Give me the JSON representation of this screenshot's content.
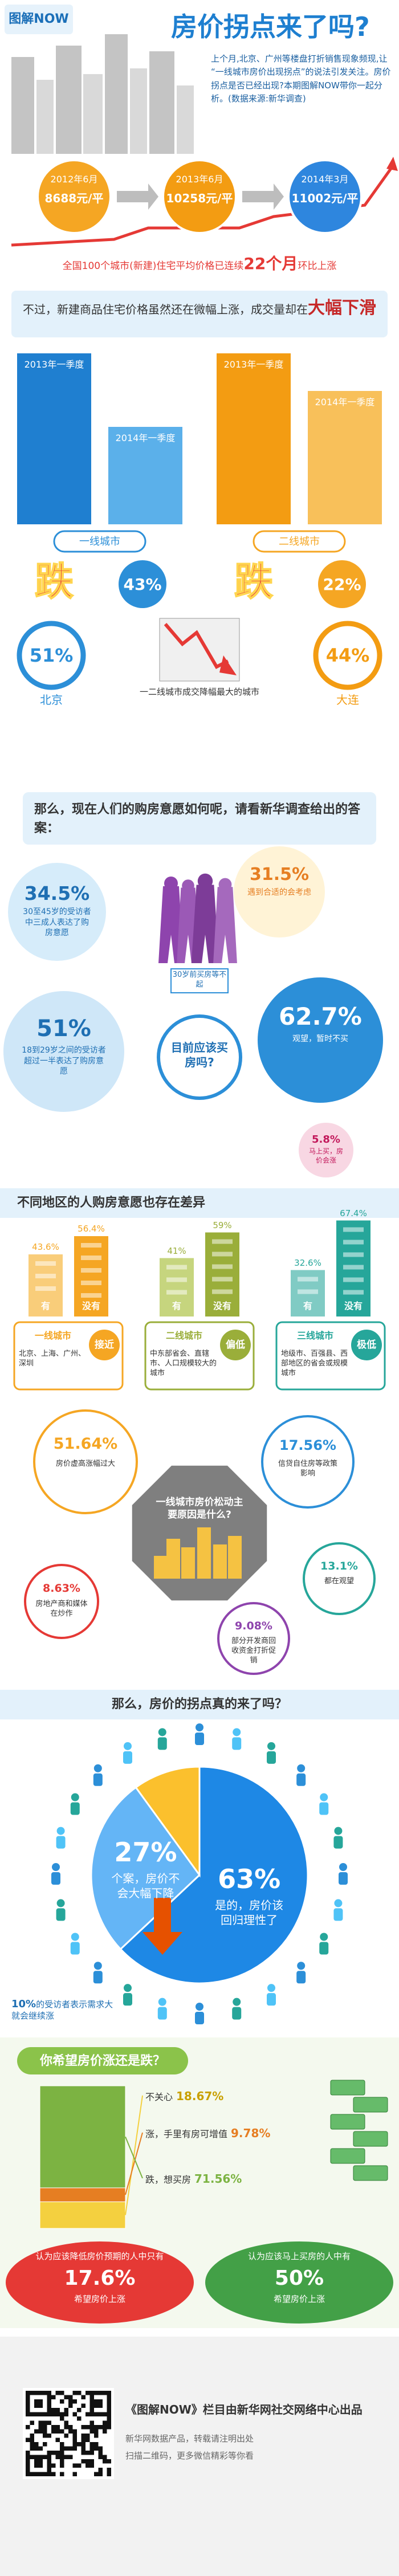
{
  "header": {
    "logo": "图解NOW",
    "title": "房价拐点来了吗?",
    "intro": "上个月,北京、广州等楼盘打折销售现象频现,让“一线城市房价出现拐点”的说法引发关注。房价拐点是否已经出现?本期图解NOW带你一起分析。(数据来源:新华调查)"
  },
  "timeline": {
    "items": [
      {
        "date": "2012年6月",
        "price": "8688元/平"
      },
      {
        "date": "2013年6月",
        "price": "10258元/平"
      },
      {
        "date": "2014年3月",
        "price": "11002元/平"
      }
    ],
    "note_before": "全国100个城市(新建)住宅平均价格已连续",
    "note_number": "22个月",
    "note_after": "环比上涨"
  },
  "volume": {
    "lead_before": "不过，新建商品住宅价格虽然还在微幅上涨，成交量却在",
    "lead_emph": "大幅下滑",
    "drop_word": "跌",
    "groups": [
      {
        "name": "一线城市",
        "bars": [
          "2013年一季度",
          "2014年一季度"
        ],
        "drop": {
          "value": 43,
          "label": "43%"
        }
      },
      {
        "name": "二线城市",
        "bars": [
          "2013年一季度",
          "2014年一季度"
        ],
        "drop": {
          "value": 22,
          "label": "22%"
        }
      }
    ]
  },
  "cities": {
    "left": {
      "pct": "51%",
      "city": "北京"
    },
    "center": "一二线城市成交降幅最大的城市",
    "right": {
      "pct": "44%",
      "city": "大连"
    }
  },
  "survey": {
    "question": "那么，现在人们的购房意愿如何呢，请看新华调查给出的答案：",
    "center": "目前应该买房吗?",
    "figure_caption": "30岁前买房等不起",
    "bubbles": [
      {
        "pct": "34.5%",
        "text": "30至45岁的受访者中三成人表达了购房意愿"
      },
      {
        "pct": "31.5%",
        "text": "遇到合适的会考虑"
      },
      {
        "pct": "51%",
        "text": "18到29岁之间的受访者超过一半表达了购房意愿"
      },
      {
        "pct": "62.7%",
        "text": "观望，暂时不买"
      },
      {
        "pct": "5.8%",
        "text": "马上买，房价会涨"
      }
    ]
  },
  "regions": {
    "title": "不同地区的人购房意愿也存在差异",
    "yes_label": "有",
    "no_label": "没有",
    "groups": [
      {
        "name": "一线城市",
        "yes": {
          "value": 43.6,
          "label": "43.6%"
        },
        "no": {
          "value": 56.4,
          "label": "56.4%"
        },
        "level": "接近",
        "cities": "北京、上海、广州、深圳"
      },
      {
        "name": "二线城市",
        "yes": {
          "value": 41,
          "label": "41%"
        },
        "no": {
          "value": 59,
          "label": "59%"
        },
        "level": "偏低",
        "cities": "中东部省会、直辖市、人口规模较大的城市"
      },
      {
        "name": "三线城市",
        "yes": {
          "value": 32.6,
          "label": "32.6%"
        },
        "no": {
          "value": 67.4,
          "label": "67.4%"
        },
        "level": "极低",
        "cities": "地级市、百强县、西部地区的省会或规模城市"
      }
    ]
  },
  "reasons": {
    "center": "一线城市房价松动主要原因是什么?",
    "items": [
      {
        "pct": "51.64%",
        "text": "房价虚高涨幅过大"
      },
      {
        "pct": "17.56%",
        "text": "信贷自住房等政策影响"
      },
      {
        "pct": "13.1%",
        "text": "都在观望"
      },
      {
        "pct": "8.63%",
        "text": "房地产商和媒体在炒作"
      },
      {
        "pct": "9.08%",
        "text": "部分开发商回收资金打折促销"
      }
    ]
  },
  "turning": {
    "question": "那么，房价的拐点真的来了吗？",
    "slices": [
      {
        "value": 63,
        "label": "63%",
        "text": "是的，房价该回归理性了"
      },
      {
        "value": 27,
        "label": "27%",
        "text": "个案，房价不会大幅下降"
      },
      {
        "value": 10,
        "label": "10%",
        "text": "的受访者表示需求大就会继续涨"
      }
    ]
  },
  "hope": {
    "title": "你希望房价涨还是跌？",
    "segments": [
      {
        "text": "不关心",
        "value": 18.67,
        "label": "18.67%"
      },
      {
        "text": "涨，手里有房可增值",
        "value": 9.78,
        "label": "9.78%"
      },
      {
        "text": "跌，想买房",
        "value": 71.56,
        "label": "71.56%"
      }
    ],
    "notes": [
      {
        "before": "认为应该降低房价预期的人中只有",
        "pct": "17.6%",
        "after": "希望房价上涨"
      },
      {
        "before": "认为应该马上买房的人中有",
        "pct": "50%",
        "after": "希望房价上涨"
      }
    ]
  },
  "footer": {
    "title": "《图解NOW》栏目由新华网社交网络中心出品",
    "lines": [
      "新华网数据产品，转载请注明出处",
      "扫描二维码，更多微信精彩等你看"
    ]
  }
}
